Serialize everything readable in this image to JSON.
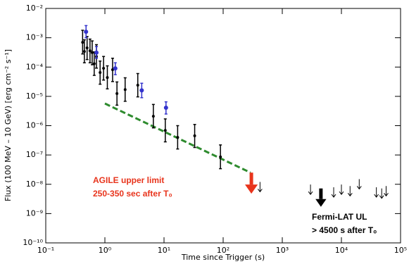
{
  "chart_data": {
    "type": "scatter",
    "xlabel": "Time since Trigger (s)",
    "ylabel": "Flux (100 MeV – 10 GeV) [erg cm⁻² s⁻¹]",
    "xlog": true,
    "ylog": true,
    "xlim": [
      0.1,
      100000
    ],
    "ylim": [
      1e-10,
      0.01
    ],
    "xticks": [
      {
        "value": 0.1,
        "label": "10⁻¹"
      },
      {
        "value": 1,
        "label": "10⁰"
      },
      {
        "value": 10,
        "label": "10¹"
      },
      {
        "value": 100,
        "label": "10²"
      },
      {
        "value": 1000,
        "label": "10³"
      },
      {
        "value": 10000,
        "label": "10⁴"
      },
      {
        "value": 100000,
        "label": "10⁵"
      }
    ],
    "yticks": [
      {
        "value": 1e-10,
        "label": "10⁻¹⁰"
      },
      {
        "value": 1e-09,
        "label": "10⁻⁹"
      },
      {
        "value": 1e-08,
        "label": "10⁻⁸"
      },
      {
        "value": 1e-07,
        "label": "10⁻⁷"
      },
      {
        "value": 1e-06,
        "label": "10⁻⁶"
      },
      {
        "value": 1e-05,
        "label": "10⁻⁵"
      },
      {
        "value": 0.0001,
        "label": "10⁻⁴"
      },
      {
        "value": 0.001,
        "label": "10⁻³"
      },
      {
        "value": 0.01,
        "label": "10⁻²"
      }
    ],
    "series": [
      {
        "color": "#000000",
        "x": [
          0.42,
          0.45,
          0.5,
          0.56,
          0.61,
          0.66,
          0.72,
          0.83,
          0.95,
          1.1,
          1.35,
          1.6,
          2.2,
          3.6,
          6.6,
          10.5,
          17,
          33,
          90
        ],
        "values": [
          0.0007,
          0.00034,
          0.00045,
          0.00036,
          0.00031,
          0.00013,
          0.00023,
          6.5e-05,
          9.1e-05,
          4.4e-05,
          8.1e-05,
          1.25e-05,
          1.7e-05,
          2.4e-05,
          2.1e-06,
          6.9e-07,
          4e-07,
          4.5e-07,
          8.6e-08
        ],
        "y_low": [
          0.00028,
          0.00014,
          0.00018,
          0.00014,
          0.00012,
          5.2e-05,
          9.2e-05,
          2.6e-05,
          3.6e-05,
          1.8e-05,
          3.2e-05,
          5e-06,
          6.8e-06,
          9.6e-06,
          8.4e-07,
          2.8e-07,
          1.6e-07,
          1.8e-07,
          3.4e-08
        ],
        "y_high": [
          0.0018,
          0.00085,
          0.0011,
          0.0009,
          0.00078,
          0.00033,
          0.00058,
          0.00016,
          0.00023,
          0.00011,
          0.0002,
          3.1e-05,
          4.3e-05,
          6e-05,
          5.3e-06,
          1.7e-06,
          1e-06,
          1.1e-06,
          2.2e-07
        ]
      },
      {
        "color": "#3333cc",
        "x": [
          0.48,
          0.72,
          1.5,
          4.2,
          10.8
        ],
        "values": [
          0.0016,
          0.00031,
          9e-05,
          1.6e-05,
          4.1e-06
        ],
        "y_low": [
          0.001,
          0.0002,
          5.5e-05,
          9e-06,
          2.5e-06
        ],
        "y_high": [
          0.0026,
          0.0005,
          0.00014,
          2.8e-05,
          6.5e-06
        ]
      }
    ],
    "upper_limits": {
      "color": "#000000",
      "x": [
        420,
        3000,
        7400,
        10000,
        14000,
        20000,
        39000,
        48000,
        57000
      ],
      "values": [
        1.2e-08,
        9.8e-09,
        7.9e-09,
        9.8e-09,
        8.7e-09,
        1.5e-08,
        7.9e-09,
        7.2e-09,
        8.7e-09
      ]
    },
    "agile_limit": {
      "color": "#e8341c",
      "x": 300,
      "value": 2.5e-08
    },
    "fermi_limit": {
      "color": "#000000",
      "x": 4500,
      "value": 7.2e-09
    },
    "fit_line": {
      "color": "#2e8b2e",
      "x": [
        1,
        290
      ],
      "values": [
        5.7e-06,
        2.5e-08
      ]
    },
    "agile_label": {
      "color": "#e8341c",
      "lines": [
        "AGILE upper limit",
        "250-350 sec after T₀"
      ]
    },
    "fermi_label": {
      "color": "#000000",
      "lines": [
        "Fermi-LAT UL",
        "> 4500 s after T₀"
      ]
    }
  }
}
